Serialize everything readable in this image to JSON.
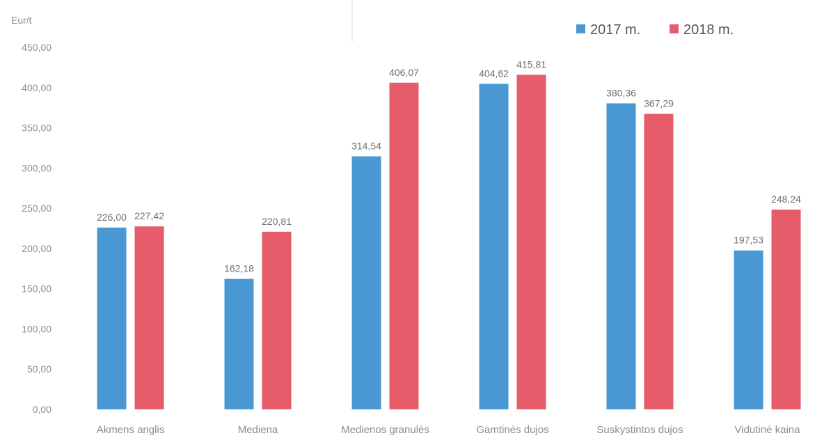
{
  "chart_data": {
    "type": "bar",
    "ylabel": "Eur/t",
    "ylim": [
      0,
      450
    ],
    "yticks": [
      "0,00",
      "50,00",
      "100,00",
      "150,00",
      "200,00",
      "250,00",
      "300,00",
      "350,00",
      "400,00",
      "450,00"
    ],
    "ytick_values": [
      0,
      50,
      100,
      150,
      200,
      250,
      300,
      350,
      400,
      450
    ],
    "categories": [
      "Akmens anglis",
      "Mediena",
      "Medienos granulės",
      "Gamtinės dujos",
      "Suskystintos dujos",
      "Vidutinė kaina"
    ],
    "series": [
      {
        "name": "2017 m.",
        "color": "#4a98d3",
        "values": [
          226.0,
          162.18,
          314.54,
          404.62,
          380.36,
          197.53
        ],
        "labels": [
          "226,00",
          "162,18",
          "314,54",
          "404,62",
          "380,36",
          "197,53"
        ]
      },
      {
        "name": "2018 m.",
        "color": "#e65c6b",
        "values": [
          227.42,
          220.81,
          406.07,
          415.81,
          367.29,
          248.24
        ],
        "labels": [
          "227,42",
          "220,81",
          "406,07",
          "415,81",
          "367,29",
          "248,24"
        ]
      }
    ],
    "legend_position": "top-right",
    "grid": false
  }
}
